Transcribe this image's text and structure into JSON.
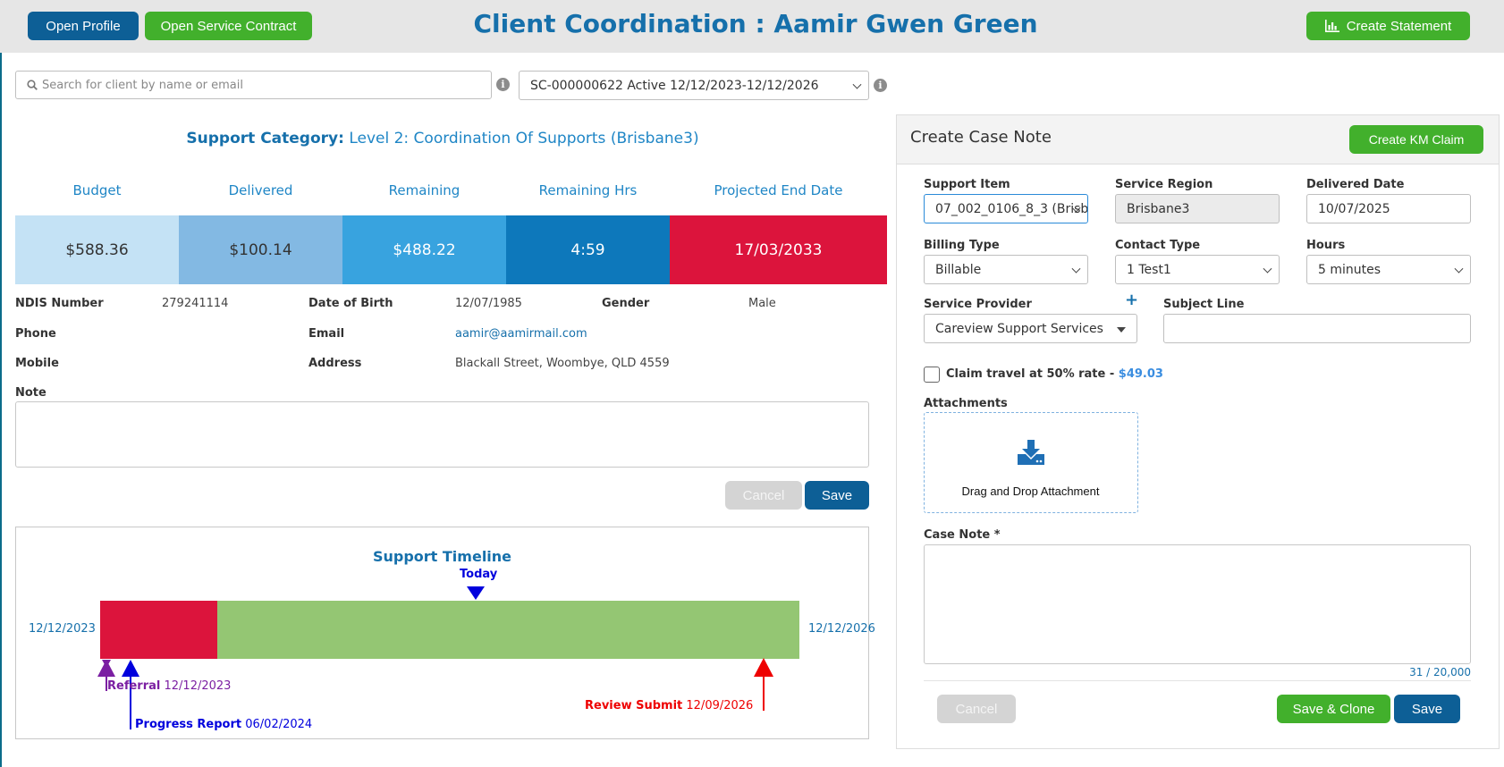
{
  "header": {
    "title": "Client Coordination : Aamir Gwen Green",
    "open_profile_label": "Open Profile",
    "open_contract_label": "Open Service Contract",
    "create_statement_label": "Create Statement"
  },
  "search": {
    "placeholder": "Search for client by name or email",
    "contract_selected": "SC-000000622 Active 12/12/2023-12/12/2026"
  },
  "category": {
    "label": "Support Category:",
    "value": "Level 2: Coordination Of Supports (Brisbane3)"
  },
  "stats": [
    {
      "label": "Budget",
      "value": "$588.36",
      "color": "#c4e2f5"
    },
    {
      "label": "Delivered",
      "value": "$100.14",
      "color": "#83b9e3"
    },
    {
      "label": "Remaining",
      "value": "$488.22",
      "color": "#38a3df"
    },
    {
      "label": "Remaining Hrs",
      "value": "4:59",
      "color": "#0d78bb"
    },
    {
      "label": "Projected End Date",
      "value": "17/03/2033",
      "color": "#dc143c"
    }
  ],
  "client": {
    "ndis_label": "NDIS Number",
    "ndis_value": "279241114",
    "dob_label": "Date of Birth",
    "dob_value": "12/07/1985",
    "gender_label": "Gender",
    "gender_value": "Male",
    "phone_label": "Phone",
    "email_label": "Email",
    "email_value": "aamir@aamirmail.com",
    "mobile_label": "Mobile",
    "address_label": "Address",
    "address_value": "Blackall Street, Woombye, QLD 4559"
  },
  "note": {
    "label": "Note",
    "cancel_label": "Cancel",
    "save_label": "Save"
  },
  "timeline": {
    "title": "Support Timeline",
    "today_label": "Today",
    "start_date": "12/12/2023",
    "end_date": "12/12/2026",
    "referral_label": "Referral",
    "referral_date": "12/12/2023",
    "progress_label": "Progress Report",
    "progress_date": "06/02/2024",
    "review_label": "Review Submit",
    "review_date": "12/09/2026",
    "elapsed_color": "#dc143c",
    "remaining_color": "#94c673"
  },
  "case_note": {
    "title": "Create Case Note",
    "km_claim_label": "Create KM Claim",
    "support_item_label": "Support Item",
    "support_item_value": "07_002_0106_8_3 (Brisb",
    "service_region_label": "Service Region",
    "service_region_value": "Brisbane3",
    "delivered_date_label": "Delivered Date",
    "delivered_date_value": "10/07/2025",
    "billing_type_label": "Billing Type",
    "billing_type_value": "Billable",
    "contact_type_label": "Contact Type",
    "contact_type_value": "1 Test1",
    "hours_label": "Hours",
    "hours_value": "5 minutes",
    "service_provider_label": "Service Provider",
    "service_provider_value": "Careview Support Services",
    "add_symbol": "+",
    "subject_label": "Subject Line",
    "subject_value": "",
    "claim_travel_label": "Claim travel at 50% rate -",
    "claim_travel_amount": "$49.03",
    "attachments_label": "Attachments",
    "drop_label": "Drag and Drop Attachment",
    "case_note_label": "Case Note *",
    "char_count": "31 / 20,000",
    "cancel_label": "Cancel",
    "save_clone_label": "Save & Clone",
    "save_label": "Save"
  }
}
